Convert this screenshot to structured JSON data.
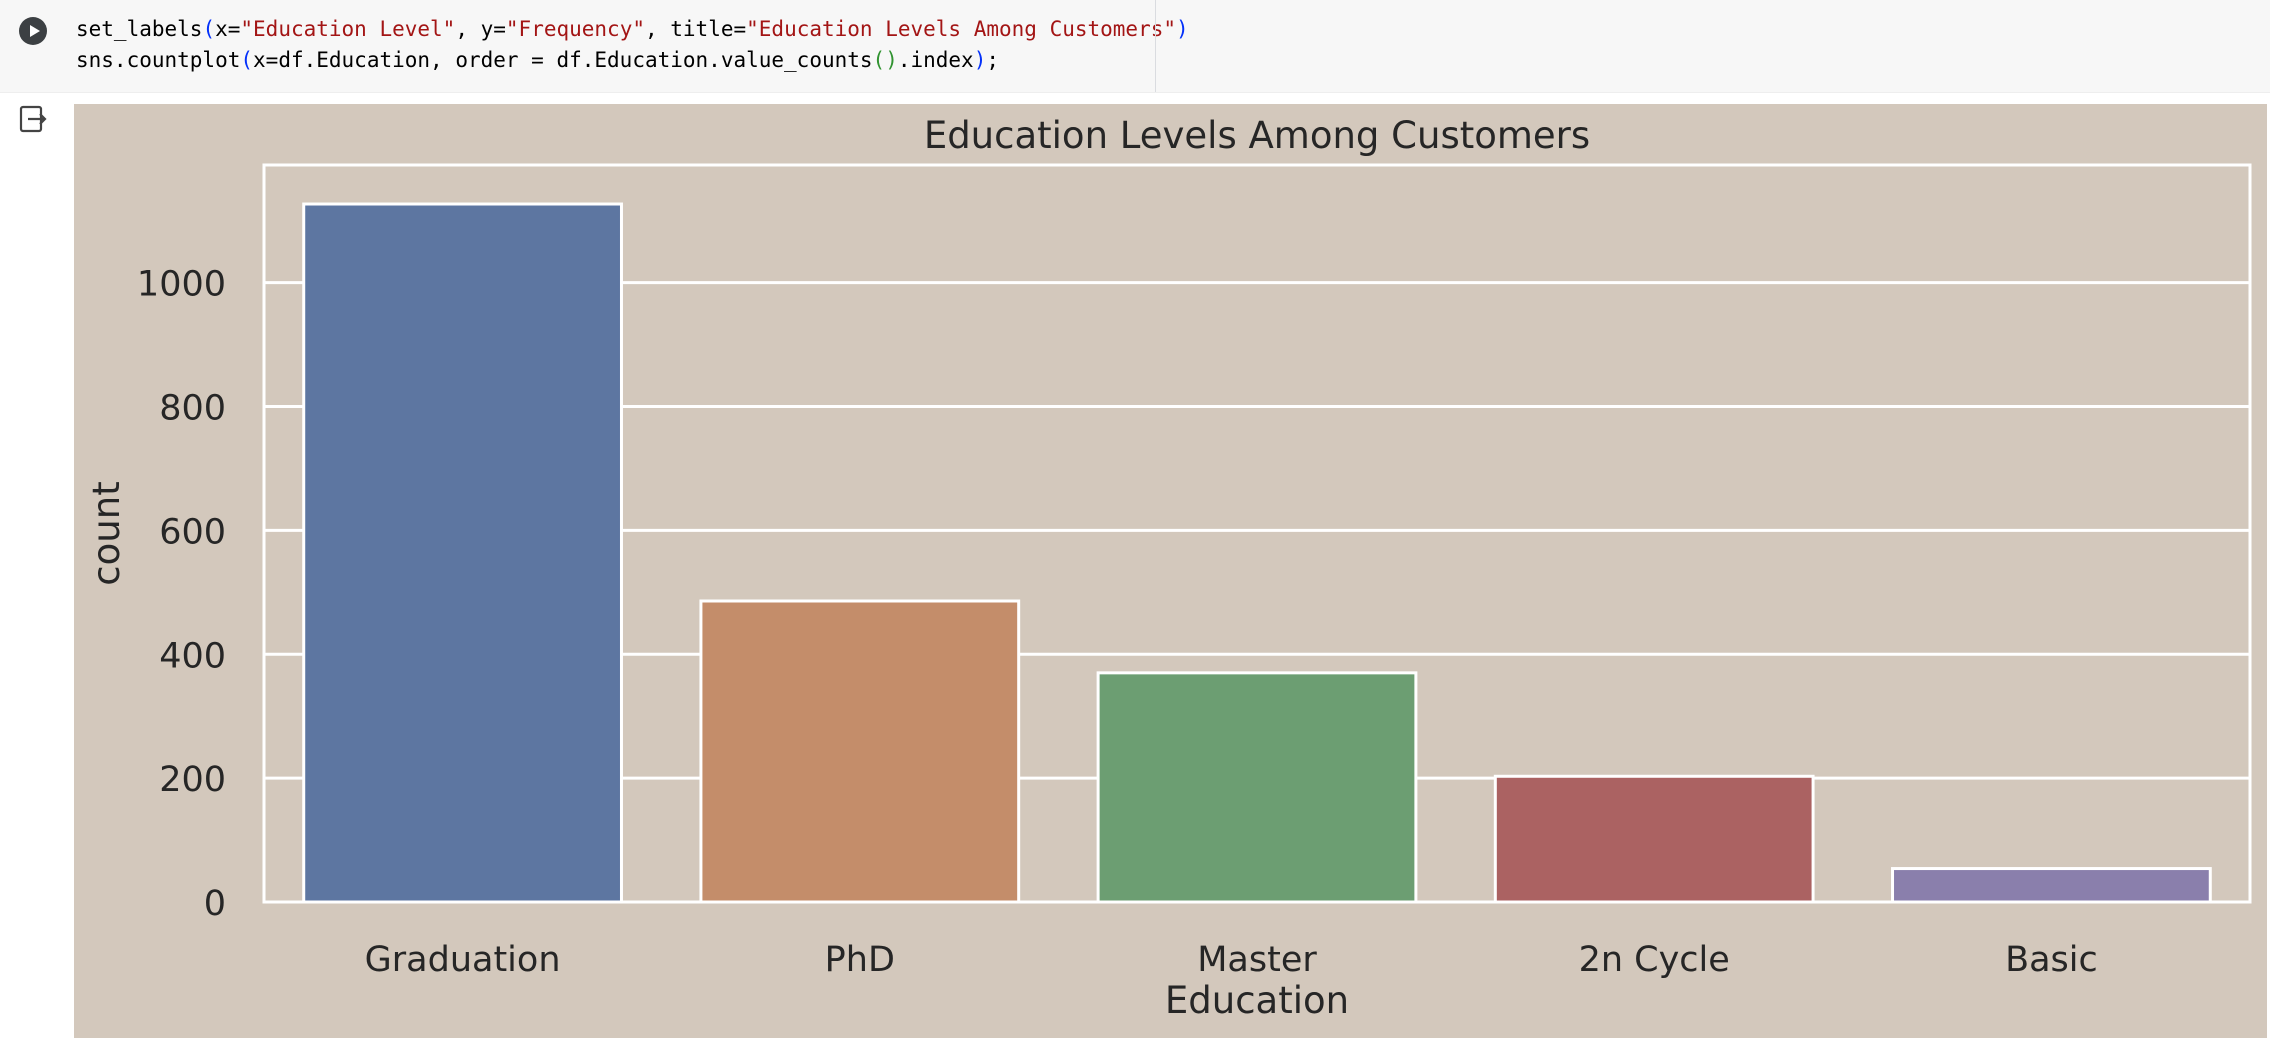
{
  "code_cell": {
    "lines": [
      [
        {
          "t": "set_labels",
          "c": ""
        },
        {
          "t": "(",
          "c": "tok-paren"
        },
        {
          "t": "x=",
          "c": ""
        },
        {
          "t": "\"Education Level\"",
          "c": "tok-str"
        },
        {
          "t": ", y=",
          "c": ""
        },
        {
          "t": "\"Frequency\"",
          "c": "tok-str"
        },
        {
          "t": ", title=",
          "c": ""
        },
        {
          "t": "\"Education Levels Among Customers\"",
          "c": "tok-str"
        },
        {
          "t": ")",
          "c": "tok-paren"
        }
      ],
      [
        {
          "t": "sns.countplot",
          "c": ""
        },
        {
          "t": "(",
          "c": "tok-paren"
        },
        {
          "t": "x=df.Education, order = df.Education.value_counts",
          "c": ""
        },
        {
          "t": "()",
          "c": "tok-paren2"
        },
        {
          "t": ".index",
          "c": ""
        },
        {
          "t": ")",
          "c": "tok-paren"
        },
        {
          "t": ";",
          "c": ""
        }
      ]
    ]
  },
  "chart_data": {
    "type": "bar",
    "title": "Education Levels Among Customers",
    "xlabel": "Education",
    "ylabel": "count",
    "categories": [
      "Graduation",
      "PhD",
      "Master",
      "2n Cycle",
      "Basic"
    ],
    "values": [
      1127,
      486,
      370,
      203,
      54
    ],
    "ylim": [
      0,
      1190
    ],
    "yticks": [
      0,
      200,
      400,
      600,
      800,
      1000
    ],
    "grid": true,
    "colors": [
      "#5d76a1",
      "#c48d6a",
      "#6c9e72",
      "#ab6262",
      "#8a7fac"
    ],
    "background": "#d3c8bc",
    "gridcolor": "#ffffff"
  }
}
